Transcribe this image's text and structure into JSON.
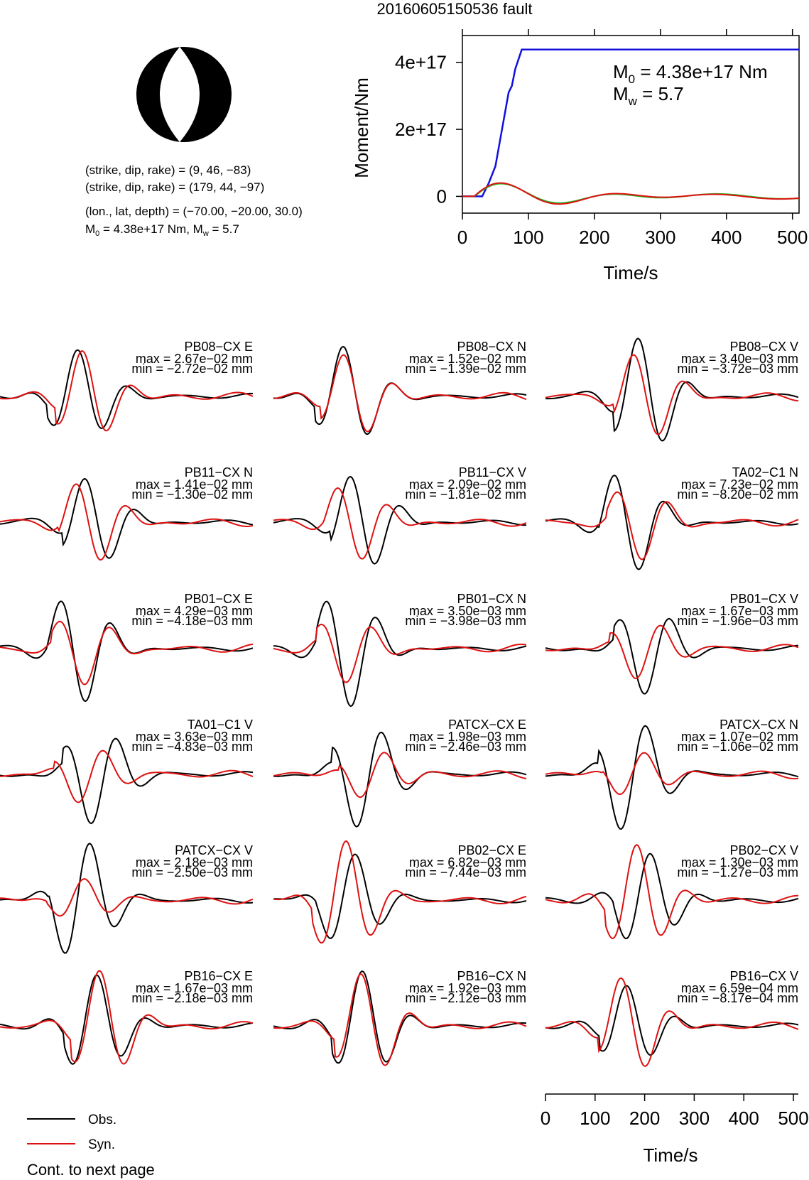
{
  "title": "20160605150536 fault",
  "mechanism": {
    "line1": "(strike, dip, rake) = (9, 46, −83)",
    "line2": "(strike, dip, rake) = (179, 44, −97)",
    "line3": "(lon., lat, depth) = (−70.00, −20.00, 30.0)",
    "line4_prefix": "M",
    "line4_sub": "0",
    "line4_mid": " = 4.38e+17 Nm, M",
    "line4_sub2": "w",
    "line4_end": " = 5.7"
  },
  "colors": {
    "obs": "#000000",
    "syn": "#dd1111",
    "moment": "#1111dd",
    "green": "#22bb22",
    "axis": "#000000"
  },
  "chart_data": [
    {
      "type": "line",
      "name": "moment-rate",
      "ylabel": "Moment/Nm",
      "xlabel": "Time/s",
      "xlim": [
        0,
        510
      ],
      "ylim": [
        -5e+16,
        4.8e+17
      ],
      "xticks": [
        0,
        100,
        200,
        300,
        400,
        500
      ],
      "xtick_labels": [
        "0",
        "100",
        "200",
        "300",
        "400",
        "500"
      ],
      "yticks": [
        0,
        2e+17,
        4e+17
      ],
      "ytick_labels": [
        "0",
        "2e+17",
        "4e+17"
      ],
      "annotation": {
        "m0_sym": "M",
        "m0_sub": "0",
        "m0_val": " = 4.38e+17 Nm",
        "mw_sym": "M",
        "mw_sub": "w",
        "mw_val": " = 5.7"
      },
      "series": [
        {
          "color_key": "moment",
          "x": [
            0,
            30,
            40,
            50,
            60,
            70,
            75,
            80,
            90,
            510
          ],
          "y": [
            0,
            0,
            4e+16,
            9e+16,
            2e+17,
            3.1e+17,
            3.3e+17,
            3.8e+17,
            4.38e+17,
            4.38e+17
          ]
        }
      ]
    },
    {
      "type": "line",
      "name": "waveforms",
      "xlabel": "Time/s",
      "xlim": [
        0,
        510
      ],
      "xticks": [
        0,
        100,
        200,
        300,
        400,
        500
      ],
      "xtick_labels": [
        "0",
        "100",
        "200",
        "300",
        "400",
        "500"
      ],
      "legend": {
        "obs": "Obs.",
        "syn": "Syn.",
        "footer": "Cont. to next page",
        "placement": "bottom-left"
      },
      "traces": [
        {
          "label": "PB08−CX E",
          "max": "max = 2.67e−02 mm",
          "min": "min = −2.72e−02 mm"
        },
        {
          "label": "PB08−CX N",
          "max": "max = 1.52e−02 mm",
          "min": "min = −1.39e−02 mm"
        },
        {
          "label": "PB08−CX V",
          "max": "max = 3.40e−03 mm",
          "min": "min = −3.72e−03 mm"
        },
        {
          "label": "PB11−CX N",
          "max": "max = 1.41e−02 mm",
          "min": "min = −1.30e−02 mm"
        },
        {
          "label": "PB11−CX V",
          "max": "max = 2.09e−02 mm",
          "min": "min = −1.81e−02 mm"
        },
        {
          "label": "TA02−C1 N",
          "max": "max = 7.23e−02 mm",
          "min": "min = −8.20e−02 mm"
        },
        {
          "label": "PB01−CX E",
          "max": "max = 4.29e−03 mm",
          "min": "min = −4.18e−03 mm"
        },
        {
          "label": "PB01−CX N",
          "max": "max = 3.50e−03 mm",
          "min": "min = −3.98e−03 mm"
        },
        {
          "label": "PB01−CX V",
          "max": "max = 1.67e−03 mm",
          "min": "min = −1.96e−03 mm"
        },
        {
          "label": "TA01−C1 V",
          "max": "max = 3.63e−03 mm",
          "min": "min = −4.83e−03 mm"
        },
        {
          "label": "PATCX−CX E",
          "max": "max = 1.98e−03 mm",
          "min": "min = −2.46e−03 mm"
        },
        {
          "label": "PATCX−CX N",
          "max": "max = 1.07e−02 mm",
          "min": "min = −1.06e−02 mm"
        },
        {
          "label": "PATCX−CX V",
          "max": "max = 2.18e−03 mm",
          "min": "min = −2.50e−03 mm"
        },
        {
          "label": "PB02−CX E",
          "max": "max = 6.82e−03 mm",
          "min": "min = −7.44e−03 mm"
        },
        {
          "label": "PB02−CX V",
          "max": "max = 1.30e−03 mm",
          "min": "min = −1.27e−03 mm"
        },
        {
          "label": "PB16−CX E",
          "max": "max = 1.67e−03 mm",
          "min": "min = −2.18e−03 mm"
        },
        {
          "label": "PB16−CX N",
          "max": "max = 1.92e−03 mm",
          "min": "min = −2.12e−03 mm"
        },
        {
          "label": "PB16−CX V",
          "max": "max = 6.59e−04 mm",
          "min": "min = −8.17e−04 mm"
        }
      ]
    }
  ]
}
